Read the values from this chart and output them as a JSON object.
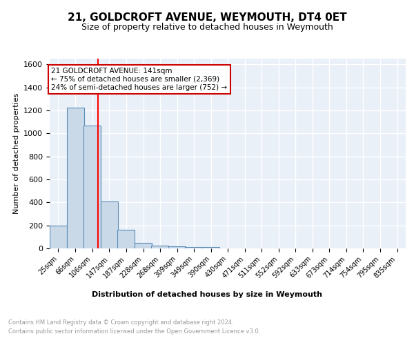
{
  "title": "21, GOLDCROFT AVENUE, WEYMOUTH, DT4 0ET",
  "subtitle": "Size of property relative to detached houses in Weymouth",
  "xlabel": "Distribution of detached houses by size in Weymouth",
  "ylabel": "Number of detached properties",
  "bins": [
    25,
    66,
    106,
    147,
    187,
    228,
    268,
    309,
    349,
    390,
    430,
    471,
    511,
    552,
    592,
    633,
    673,
    714,
    754,
    795,
    835
  ],
  "bar_heights": [
    200,
    1225,
    1065,
    410,
    165,
    50,
    25,
    20,
    15,
    15,
    0,
    0,
    0,
    0,
    0,
    0,
    0,
    0,
    0,
    0
  ],
  "bar_color": "#c9d9e8",
  "bar_edge_color": "#5b8db8",
  "red_line_x": 141,
  "ylim": [
    0,
    1650
  ],
  "annotation_text": "21 GOLDCROFT AVENUE: 141sqm\n← 75% of detached houses are smaller (2,369)\n24% of semi-detached houses are larger (752) →",
  "annotation_box_color": "#ffffff",
  "annotation_box_edge": "#cc0000",
  "footer_line1": "Contains HM Land Registry data © Crown copyright and database right 2024.",
  "footer_line2": "Contains public sector information licensed under the Open Government Licence v3.0.",
  "bg_color": "#eaf0f8",
  "grid_color": "#ffffff",
  "title_fontsize": 11,
  "subtitle_fontsize": 9,
  "xlabel_fontsize": 8,
  "ylabel_fontsize": 8,
  "tick_fontsize": 7,
  "tick_labels": [
    "25sqm",
    "66sqm",
    "106sqm",
    "147sqm",
    "187sqm",
    "228sqm",
    "268sqm",
    "309sqm",
    "349sqm",
    "390sqm",
    "430sqm",
    "471sqm",
    "511sqm",
    "552sqm",
    "592sqm",
    "633sqm",
    "673sqm",
    "714sqm",
    "754sqm",
    "795sqm",
    "835sqm"
  ]
}
